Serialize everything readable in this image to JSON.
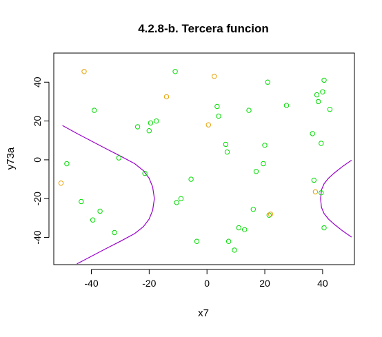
{
  "chart_data": {
    "type": "scatter",
    "title": "4.2.8-b. Tercera funcion",
    "xlabel": "x7",
    "ylabel": "y73a",
    "xlim": [
      -53,
      51
    ],
    "ylim": [
      -54,
      55
    ],
    "xticks": [
      -40,
      -20,
      0,
      20,
      40
    ],
    "yticks": [
      -40,
      -20,
      0,
      20,
      40
    ],
    "grid": false,
    "colors": {
      "green": "#00dd00",
      "orange": "#e69f00",
      "curve": "#9900cc"
    },
    "series": [
      {
        "color": "green",
        "points": [
          [
            -48.5,
            -2
          ],
          [
            -43.5,
            -21.5
          ],
          [
            -39,
            25.5
          ],
          [
            -39.5,
            -31
          ],
          [
            -37,
            -26.5
          ],
          [
            -32,
            -37.5
          ],
          [
            -30.5,
            1
          ],
          [
            -24,
            17
          ],
          [
            -21.5,
            -7
          ],
          [
            -20,
            15
          ],
          [
            -19.5,
            19
          ],
          [
            -17.5,
            20
          ],
          [
            -11,
            45.5
          ],
          [
            -10.5,
            -22
          ],
          [
            -9,
            -20
          ],
          [
            -5.5,
            -10
          ],
          [
            -3.5,
            -42
          ],
          [
            3.5,
            27.5
          ],
          [
            4,
            22.5
          ],
          [
            6.5,
            8
          ],
          [
            7,
            4
          ],
          [
            7.5,
            -42
          ],
          [
            9.5,
            -46.5
          ],
          [
            11,
            -35
          ],
          [
            13,
            -36
          ],
          [
            14.5,
            25.5
          ],
          [
            16,
            -25.5
          ],
          [
            17,
            -6
          ],
          [
            19.5,
            -2
          ],
          [
            20,
            7.5
          ],
          [
            21,
            40
          ],
          [
            21.5,
            -28.5
          ],
          [
            27.5,
            28
          ],
          [
            36.5,
            13.5
          ],
          [
            37,
            -10.5
          ],
          [
            38,
            33.5
          ],
          [
            38.5,
            30
          ],
          [
            39.5,
            8.5
          ],
          [
            39.5,
            -17
          ],
          [
            40,
            35
          ],
          [
            40.5,
            41
          ],
          [
            40.5,
            -35
          ],
          [
            42.5,
            26
          ]
        ]
      },
      {
        "color": "orange",
        "points": [
          [
            -50.5,
            -12
          ],
          [
            -42.5,
            45.5
          ],
          [
            -14,
            32.5
          ],
          [
            0.5,
            18
          ],
          [
            2.5,
            43
          ],
          [
            22,
            -28
          ],
          [
            37.5,
            -16.5
          ]
        ]
      }
    ],
    "curves": [
      {
        "color": "curve",
        "points": [
          [
            -50,
            17.7
          ],
          [
            -45,
            13.6
          ],
          [
            -40,
            9.7
          ],
          [
            -35,
            5.8
          ],
          [
            -30,
            2
          ],
          [
            -25,
            -2
          ],
          [
            -22,
            -5.6
          ],
          [
            -20,
            -9.5
          ],
          [
            -18.8,
            -14
          ],
          [
            -18.2,
            -20
          ],
          [
            -18.8,
            -26
          ],
          [
            -20,
            -30.5
          ],
          [
            -22,
            -34.4
          ],
          [
            -25,
            -38
          ],
          [
            -30,
            -42
          ],
          [
            -35,
            -45.8
          ],
          [
            -40,
            -49.7
          ],
          [
            -45,
            -53.6
          ]
        ]
      },
      {
        "color": "curve",
        "points": [
          [
            50,
            -0.2
          ],
          [
            47,
            -3.3
          ],
          [
            44,
            -6.8
          ],
          [
            42,
            -9.5
          ],
          [
            40.5,
            -12.3
          ],
          [
            39.6,
            -15.5
          ],
          [
            39.3,
            -20
          ],
          [
            39.6,
            -24.5
          ],
          [
            40.5,
            -27.7
          ],
          [
            42,
            -30.5
          ],
          [
            44,
            -33.2
          ],
          [
            47,
            -36.7
          ],
          [
            50,
            -39.8
          ]
        ]
      }
    ]
  }
}
